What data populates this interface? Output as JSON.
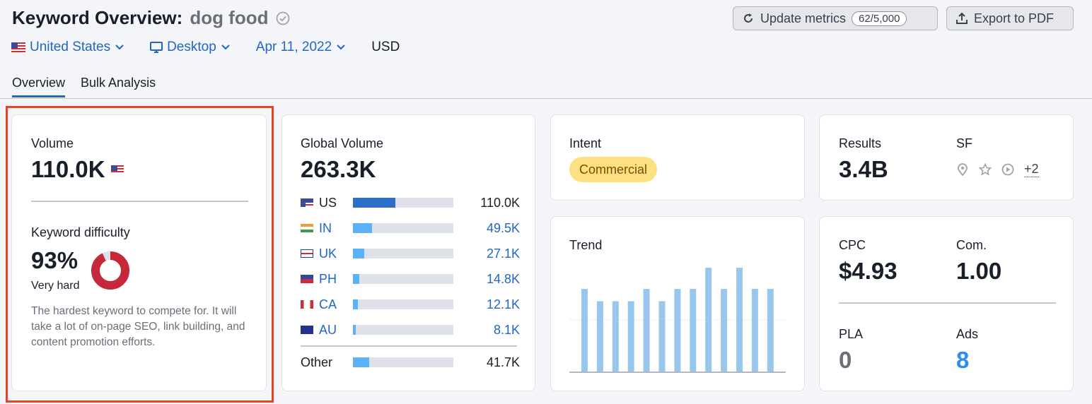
{
  "header": {
    "title_prefix": "Keyword Overview:",
    "keyword": "dog food",
    "update_label": "Update metrics",
    "update_count": "62/5,000",
    "export_label": "Export to PDF"
  },
  "filters": {
    "country": "United States",
    "device": "Desktop",
    "date": "Apr 11, 2022",
    "currency": "USD"
  },
  "tabs": [
    "Overview",
    "Bulk Analysis"
  ],
  "volume_card": {
    "label": "Volume",
    "value": "110.0K",
    "kd_label": "Keyword difficulty",
    "kd_value": "93%",
    "kd_percent": 93,
    "kd_rating": "Very hard",
    "kd_desc": "The hardest keyword to compete for. It will take a lot of on-page SEO, link building, and content promotion efforts.",
    "kd_color": "#c6283b"
  },
  "global_card": {
    "label": "Global Volume",
    "value": "263.3K",
    "rows": [
      {
        "code": "US",
        "value": "110.0K",
        "fill": 0.42,
        "icon": "us-flag-icon"
      },
      {
        "code": "IN",
        "value": "49.5K",
        "fill": 0.19,
        "icon": "in-flag-icon"
      },
      {
        "code": "UK",
        "value": "27.1K",
        "fill": 0.11,
        "icon": "uk-flag-icon"
      },
      {
        "code": "PH",
        "value": "14.8K",
        "fill": 0.06,
        "icon": "ph-flag-icon"
      },
      {
        "code": "CA",
        "value": "12.1K",
        "fill": 0.05,
        "icon": "ca-flag-icon"
      },
      {
        "code": "AU",
        "value": "8.1K",
        "fill": 0.03,
        "icon": "au-flag-icon"
      }
    ],
    "other_label": "Other",
    "other_value": "41.7K",
    "other_fill": 0.16
  },
  "intent_card": {
    "label": "Intent",
    "badge": "Commercial"
  },
  "results_card": {
    "results_label": "Results",
    "results_value": "3.4B",
    "sf_label": "SF",
    "sf_more": "+2"
  },
  "trend_card": {
    "label": "Trend",
    "bars": [
      0.74,
      0.63,
      0.63,
      0.63,
      0.74,
      0.63,
      0.74,
      0.74,
      0.93,
      0.74,
      0.93,
      0.74,
      0.74
    ]
  },
  "cpc_card": {
    "cpc_label": "CPC",
    "cpc_value": "$4.93",
    "com_label": "Com.",
    "com_value": "1.00",
    "pla_label": "PLA",
    "pla_value": "0",
    "ads_label": "Ads",
    "ads_value": "8"
  },
  "colors": {
    "accent": "#2266c5",
    "bar_fill": "#5bb2f6",
    "bar_fill_dark": "#2b6fc8",
    "highlight": "#e54527",
    "intent_bg": "#fce081",
    "trend_bar": "#99c6ec"
  }
}
